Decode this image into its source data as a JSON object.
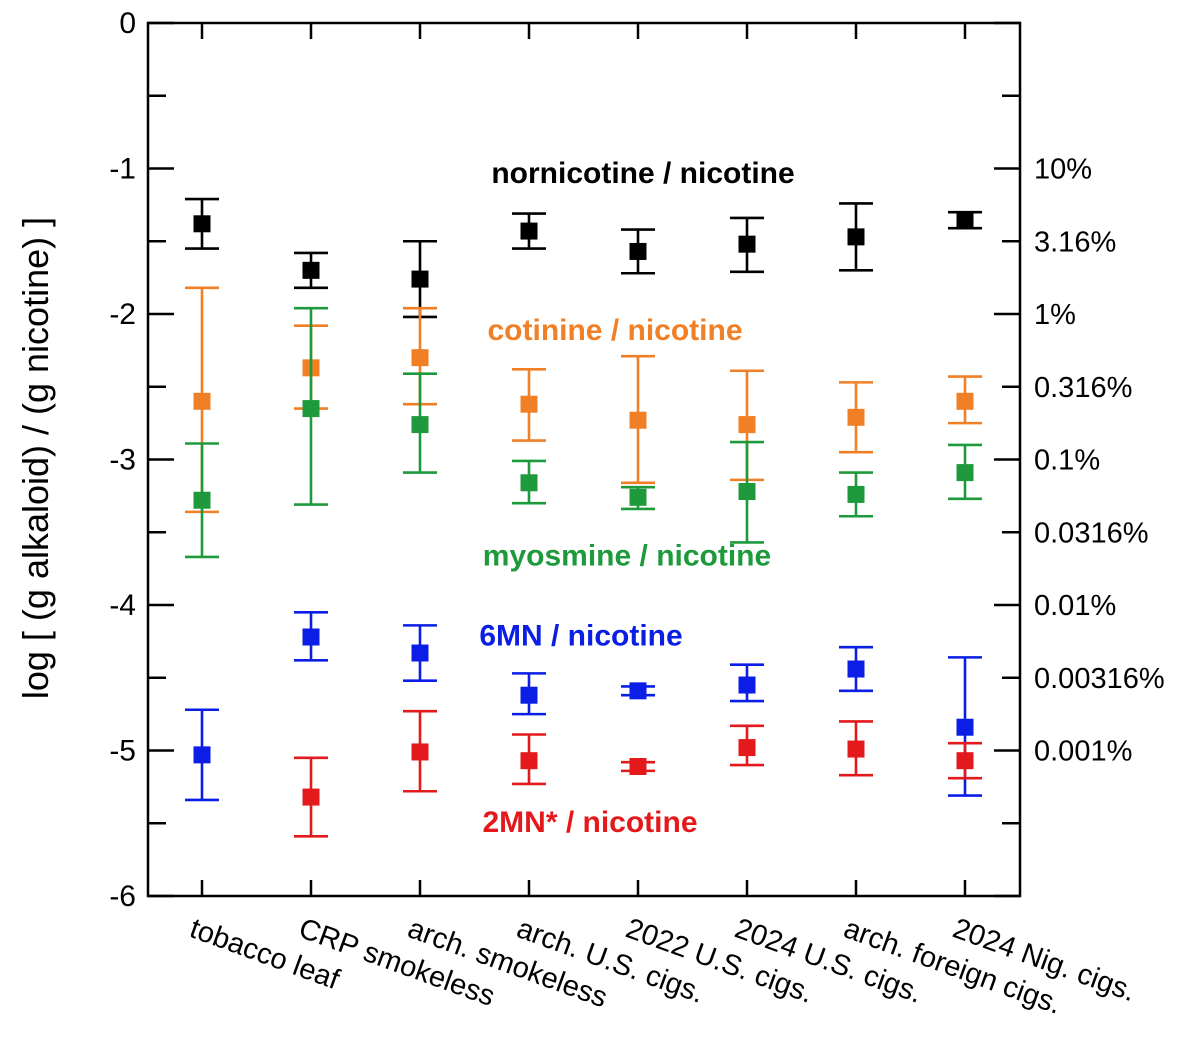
{
  "chart_data": {
    "type": "scatter",
    "ylabel": "log [ (g alkaloid) / (g nicotine) ]",
    "ylim": [
      -6,
      0
    ],
    "y_ticks": [
      "0",
      "-1",
      "-2",
      "-3",
      "-4",
      "-5",
      "-6"
    ],
    "right_axis": {
      "labels": [
        "10%",
        "3.16%",
        "1%",
        "0.316%",
        "0.1%",
        "0.0316%",
        "0.01%",
        "0.00316%",
        "0.001%"
      ],
      "log_values": [
        -1,
        -1.5,
        -2,
        -2.5,
        -3,
        -3.5,
        -4,
        -4.5,
        -5
      ]
    },
    "categories": [
      "tobacco leaf",
      "CRP smokeless",
      "arch. smokeless",
      "arch. U.S. cigs.",
      "2022 U.S. cigs.",
      "2024 U.S. cigs.",
      "arch. foreign cigs.",
      "2024 Nig. cigs."
    ],
    "grid": false,
    "series": [
      {
        "name": "nornicotine / nicotine",
        "color": "#000000",
        "values": [
          -1.38,
          -1.7,
          -1.76,
          -1.43,
          -1.57,
          -1.52,
          -1.47,
          -1.36
        ],
        "err_low": [
          -1.55,
          -1.82,
          -2.02,
          -1.55,
          -1.72,
          -1.71,
          -1.7,
          -1.41
        ],
        "err_high": [
          -1.21,
          -1.58,
          -1.5,
          -1.31,
          -1.42,
          -1.34,
          -1.24,
          -1.3
        ]
      },
      {
        "name": "cotinine / nicotine",
        "color": "#f07f26",
        "values": [
          -2.6,
          -2.37,
          -2.3,
          -2.62,
          -2.73,
          -2.76,
          -2.71,
          -2.6
        ],
        "err_low": [
          -3.36,
          -2.65,
          -2.62,
          -2.87,
          -3.16,
          -3.14,
          -2.95,
          -2.75
        ],
        "err_high": [
          -1.82,
          -2.08,
          -1.96,
          -2.38,
          -2.29,
          -2.39,
          -2.47,
          -2.43
        ]
      },
      {
        "name": "myosmine / nicotine",
        "color": "#1e9a3c",
        "values": [
          -3.28,
          -2.65,
          -2.76,
          -3.16,
          -3.26,
          -3.22,
          -3.24,
          -3.09
        ],
        "err_low": [
          -3.67,
          -3.31,
          -3.09,
          -3.3,
          -3.34,
          -3.57,
          -3.39,
          -3.27
        ],
        "err_high": [
          -2.89,
          -1.96,
          -2.41,
          -3.01,
          -3.19,
          -2.88,
          -3.09,
          -2.9
        ]
      },
      {
        "name": "6MN / nicotine",
        "color": "#0a1ee6",
        "values": [
          -5.03,
          -4.22,
          -4.33,
          -4.62,
          -4.59,
          -4.55,
          -4.44,
          -4.84
        ],
        "err_low": [
          -5.34,
          -4.38,
          -4.52,
          -4.75,
          -4.62,
          -4.66,
          -4.59,
          -5.31
        ],
        "err_high": [
          -4.72,
          -4.05,
          -4.14,
          -4.47,
          -4.56,
          -4.41,
          -4.29,
          -4.36
        ]
      },
      {
        "name": "2MN* / nicotine",
        "color": "#e3191c",
        "values": [
          null,
          -5.32,
          -5.01,
          -5.07,
          -5.11,
          -4.98,
          -4.99,
          -5.07
        ],
        "err_low": [
          null,
          -5.59,
          -5.28,
          -5.23,
          -5.14,
          -5.1,
          -5.17,
          -5.19
        ],
        "err_high": [
          null,
          -5.05,
          -4.73,
          -4.89,
          -5.08,
          -4.83,
          -4.8,
          -4.95
        ]
      }
    ]
  }
}
